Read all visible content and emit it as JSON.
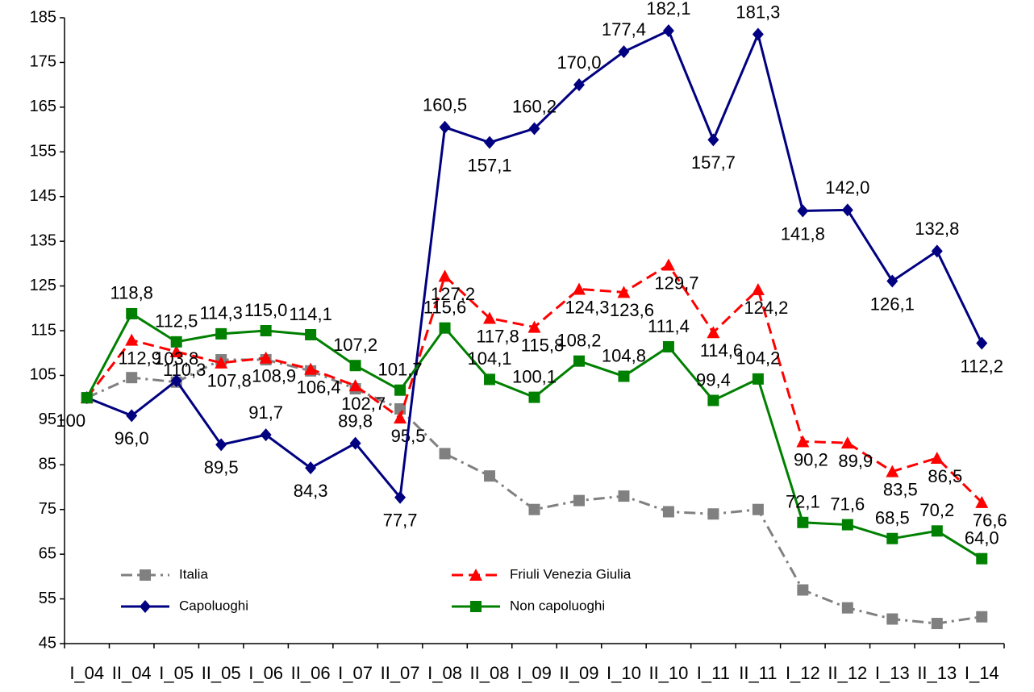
{
  "chart_data": {
    "type": "line",
    "categories": [
      "I_04",
      "II_04",
      "I_05",
      "II_05",
      "I_06",
      "II_06",
      "I_07",
      "II_07",
      "I_08",
      "II_08",
      "I_09",
      "II_09",
      "I_10",
      "II_10",
      "I_11",
      "II_11",
      "I_12",
      "II_12",
      "I_13",
      "II_13",
      "I_14"
    ],
    "ylim": [
      45,
      185
    ],
    "yticks": [
      45,
      55,
      65,
      75,
      85,
      95,
      105,
      115,
      125,
      135,
      145,
      155,
      165,
      175,
      185
    ],
    "legend": "lower left",
    "series": [
      {
        "name": "Italia",
        "color": "#808080",
        "linestyle": "dashdot",
        "marker": "square",
        "values": [
          100,
          104.5,
          103.5,
          108.5,
          108.5,
          106,
          102,
          97.5,
          87.5,
          82.5,
          75,
          77,
          78,
          74.5,
          74,
          75,
          57,
          53,
          50.5,
          49.5,
          51
        ]
      },
      {
        "name": "Friuli Venezia Giulia",
        "color": "#ff0000",
        "linestyle": "dashed",
        "marker": "triangle",
        "values": [
          100,
          112.9,
          110.3,
          107.8,
          108.9,
          106.4,
          102.7,
          95.5,
          127.2,
          117.8,
          115.8,
          124.3,
          123.6,
          129.7,
          114.6,
          124.2,
          90.2,
          89.9,
          83.5,
          86.5,
          76.6
        ],
        "value_labels": [
          null,
          "112,9",
          "110,3",
          "107,8",
          "108,9",
          "106,4",
          "102,7",
          "95,5",
          "127,2",
          "117,8",
          "115,8",
          "124,3",
          "123,6",
          "129,7",
          "114,6",
          "124,2",
          "90,2",
          "89,9",
          "83,5",
          "86,5",
          "76,6"
        ]
      },
      {
        "name": "Capoluoghi",
        "color": "#000080",
        "linestyle": "solid",
        "marker": "diamond",
        "values": [
          100,
          96.0,
          103.8,
          89.5,
          91.7,
          84.3,
          89.8,
          77.7,
          160.5,
          157.1,
          160.2,
          170.0,
          177.4,
          182.1,
          157.7,
          181.3,
          141.8,
          142.0,
          126.1,
          132.8,
          112.2
        ],
        "value_labels": [
          "100",
          "96,0",
          "103,8",
          "89,5",
          "91,7",
          "84,3",
          "89,8",
          "77,7",
          "160,5",
          "157,1",
          "160,2",
          "170,0",
          "177,4",
          "182,1",
          "157,7",
          "181,3",
          "141,8",
          "142,0",
          "126,1",
          "132,8",
          "112,2"
        ]
      },
      {
        "name": "Non capoluoghi",
        "color": "#008000",
        "linestyle": "solid",
        "marker": "square",
        "values": [
          100,
          118.8,
          112.5,
          114.3,
          115.0,
          114.1,
          107.2,
          101.7,
          115.6,
          104.1,
          100.1,
          108.2,
          104.8,
          111.4,
          99.4,
          104.2,
          72.1,
          71.6,
          68.5,
          70.2,
          64.0
        ],
        "value_labels": [
          null,
          "118,8",
          "112,5",
          "114,3",
          "115,0",
          "114,1",
          "107,2",
          "101,7",
          "115,6",
          "104,1",
          "100,1",
          "108,2",
          "104,8",
          "111,4",
          "99,4",
          "104,2",
          "72,1",
          "71,6",
          "68,5",
          "70,2",
          "64,0"
        ]
      }
    ]
  }
}
